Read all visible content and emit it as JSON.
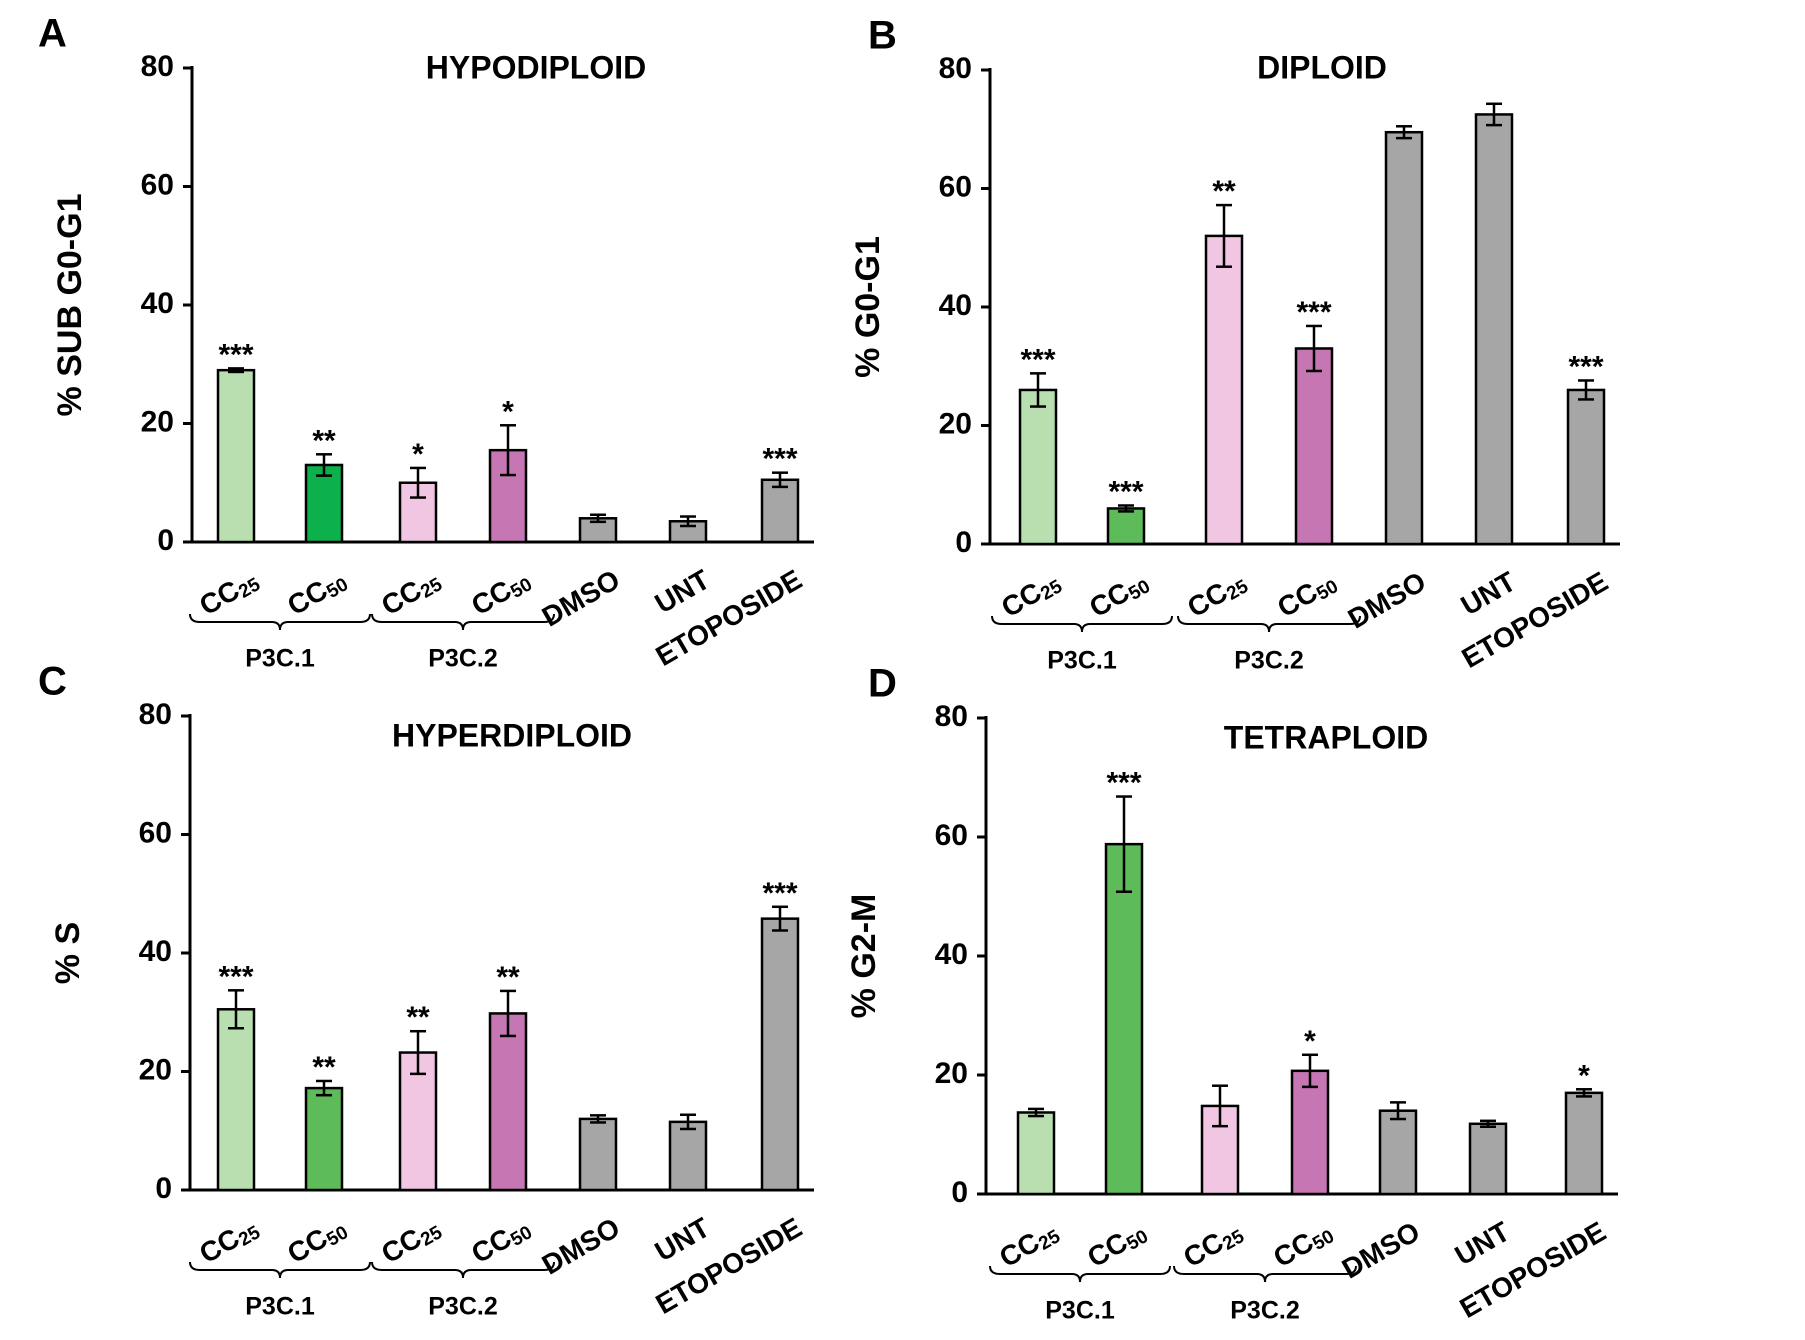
{
  "chart_data": [
    {
      "type": "bar",
      "panel": "A",
      "title": "HYPODIPLOID",
      "ylabel": "% SUB G0-G1",
      "xlabel": "",
      "ylim": [
        0,
        80
      ],
      "yticks": [
        "0",
        "20",
        "40",
        "60",
        "80"
      ],
      "categories": [
        {
          "label": "CC",
          "sub": "25",
          "group": "P3C.1"
        },
        {
          "label": "CC",
          "sub": "50",
          "group": "P3C.1"
        },
        {
          "label": "CC",
          "sub": "25",
          "group": "P3C.2"
        },
        {
          "label": "CC",
          "sub": "50",
          "group": "P3C.2"
        },
        {
          "label": "DMSO",
          "sub": "",
          "group": ""
        },
        {
          "label": "UNT",
          "sub": "",
          "group": ""
        },
        {
          "label": "ETOPOSIDE",
          "sub": "",
          "group": ""
        }
      ],
      "groups": [
        "P3C.1",
        "P3C.2"
      ],
      "values": [
        29,
        13,
        10,
        15.5,
        4,
        3.5,
        10.5
      ],
      "errors": [
        0.3,
        1.8,
        2.5,
        4.2,
        0.6,
        0.8,
        1.2
      ],
      "significance": [
        "***",
        "**",
        "*",
        "*",
        "",
        "",
        "***"
      ],
      "colors": [
        "#b9dfb0",
        "#0db14b",
        "#f0c6e2",
        "#c776b4",
        "#a6a6a6",
        "#a6a6a6",
        "#a6a6a6"
      ]
    },
    {
      "type": "bar",
      "panel": "B",
      "title": "DIPLOID",
      "ylabel": "% G0-G1",
      "xlabel": "",
      "ylim": [
        0,
        80
      ],
      "yticks": [
        "0",
        "20",
        "40",
        "60",
        "80"
      ],
      "categories": [
        {
          "label": "CC",
          "sub": "25",
          "group": "P3C.1"
        },
        {
          "label": "CC",
          "sub": "50",
          "group": "P3C.1"
        },
        {
          "label": "CC",
          "sub": "25",
          "group": "P3C.2"
        },
        {
          "label": "CC",
          "sub": "50",
          "group": "P3C.2"
        },
        {
          "label": "DMSO",
          "sub": "",
          "group": ""
        },
        {
          "label": "UNT",
          "sub": "",
          "group": ""
        },
        {
          "label": "ETOPOSIDE",
          "sub": "",
          "group": ""
        }
      ],
      "groups": [
        "P3C.1",
        "P3C.2"
      ],
      "values": [
        26,
        6,
        52,
        33,
        69.5,
        72.5,
        26
      ],
      "errors": [
        2.8,
        0.5,
        5.2,
        3.8,
        1.0,
        1.8,
        1.6
      ],
      "significance": [
        "***",
        "***",
        "**",
        "***",
        "",
        "",
        "***"
      ],
      "colors": [
        "#b9dfb0",
        "#5dbb5a",
        "#f0c6e2",
        "#c776b4",
        "#a6a6a6",
        "#a6a6a6",
        "#a6a6a6"
      ]
    },
    {
      "type": "bar",
      "panel": "C",
      "title": "HYPERDIPLOID",
      "ylabel": "% S",
      "xlabel": "",
      "ylim": [
        0,
        80
      ],
      "yticks": [
        "0",
        "20",
        "40",
        "60",
        "80"
      ],
      "categories": [
        {
          "label": "CC",
          "sub": "25",
          "group": "P3C.1"
        },
        {
          "label": "CC",
          "sub": "50",
          "group": "P3C.1"
        },
        {
          "label": "CC",
          "sub": "25",
          "group": "P3C.2"
        },
        {
          "label": "CC",
          "sub": "50",
          "group": "P3C.2"
        },
        {
          "label": "DMSO",
          "sub": "",
          "group": ""
        },
        {
          "label": "UNT",
          "sub": "",
          "group": ""
        },
        {
          "label": "ETOPOSIDE",
          "sub": "",
          "group": ""
        }
      ],
      "groups": [
        "P3C.1",
        "P3C.2"
      ],
      "values": [
        30.5,
        17.2,
        23.2,
        29.8,
        12,
        11.5,
        45.8
      ],
      "errors": [
        3.2,
        1.2,
        3.6,
        3.8,
        0.6,
        1.2,
        2.0
      ],
      "significance": [
        "***",
        "**",
        "**",
        "**",
        "",
        "",
        "***"
      ],
      "colors": [
        "#b9dfb0",
        "#5dbb5a",
        "#f0c6e2",
        "#c776b4",
        "#a6a6a6",
        "#a6a6a6",
        "#a6a6a6"
      ]
    },
    {
      "type": "bar",
      "panel": "D",
      "title": "TETRAPLOID",
      "ylabel": "% G2-M",
      "xlabel": "",
      "ylim": [
        0,
        80
      ],
      "yticks": [
        "0",
        "20",
        "40",
        "60",
        "80"
      ],
      "categories": [
        {
          "label": "CC",
          "sub": "25",
          "group": "P3C.1"
        },
        {
          "label": "CC",
          "sub": "50",
          "group": "P3C.1"
        },
        {
          "label": "CC",
          "sub": "25",
          "group": "P3C.2"
        },
        {
          "label": "CC",
          "sub": "50",
          "group": "P3C.2"
        },
        {
          "label": "DMSO",
          "sub": "",
          "group": ""
        },
        {
          "label": "UNT",
          "sub": "",
          "group": ""
        },
        {
          "label": "ETOPOSIDE",
          "sub": "",
          "group": ""
        }
      ],
      "groups": [
        "P3C.1",
        "P3C.2"
      ],
      "values": [
        13.7,
        58.8,
        14.8,
        20.7,
        14,
        11.8,
        17
      ],
      "errors": [
        0.6,
        8.0,
        3.4,
        2.7,
        1.4,
        0.5,
        0.6
      ],
      "significance": [
        "",
        "***",
        "",
        "*",
        "",
        "",
        "*"
      ],
      "colors": [
        "#b9dfb0",
        "#5dbb5a",
        "#f0c6e2",
        "#c776b4",
        "#a6a6a6",
        "#a6a6a6",
        "#a6a6a6"
      ]
    }
  ]
}
